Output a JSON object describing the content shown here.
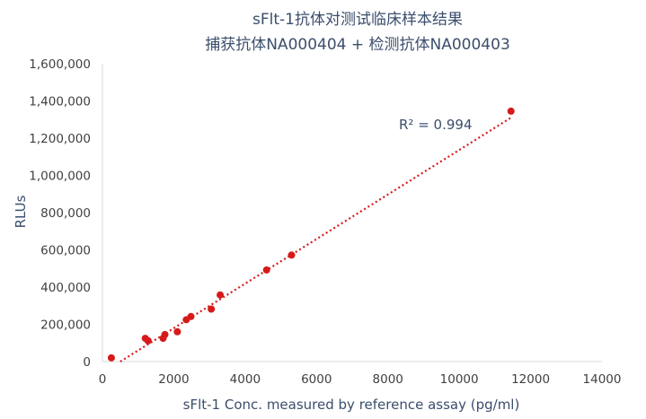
{
  "chart_data": {
    "type": "scatter",
    "title": "sFlt-1抗体对测试临床样本结果",
    "subtitle": "捕获抗体NA000404 + 检测抗体NA000403",
    "xlabel": "sFlt-1 Conc. measured by reference assay (pg/ml)",
    "ylabel": "RLUs",
    "xlim": [
      0,
      14000
    ],
    "ylim": [
      0,
      1600000
    ],
    "x_ticks": [
      0,
      2000,
      4000,
      6000,
      8000,
      10000,
      12000,
      14000
    ],
    "x_tick_labels": [
      "0",
      "2000",
      "4000",
      "6000",
      "8000",
      "10000",
      "12000",
      "14000"
    ],
    "y_ticks": [
      0,
      200000,
      400000,
      600000,
      800000,
      1000000,
      1200000,
      1400000,
      1600000
    ],
    "y_tick_labels": [
      "0",
      "200,000",
      "400,000",
      "600,000",
      "800,000",
      "1,000,000",
      "1,200,000",
      "1,400,000",
      "1,600,000"
    ],
    "grid": false,
    "series": [
      {
        "color": "#d61a1a",
        "points": [
          {
            "x": 250,
            "y": 20000
          },
          {
            "x": 1200,
            "y": 125000
          },
          {
            "x": 1280,
            "y": 112000
          },
          {
            "x": 1700,
            "y": 125000
          },
          {
            "x": 1750,
            "y": 145000
          },
          {
            "x": 2100,
            "y": 160000
          },
          {
            "x": 2350,
            "y": 225000
          },
          {
            "x": 2480,
            "y": 242000
          },
          {
            "x": 3050,
            "y": 282000
          },
          {
            "x": 3300,
            "y": 358000
          },
          {
            "x": 4600,
            "y": 492000
          },
          {
            "x": 5300,
            "y": 572000
          },
          {
            "x": 11450,
            "y": 1345000
          }
        ]
      }
    ],
    "trendline": {
      "type": "linear",
      "style": "dotted",
      "color": "#d61a1a",
      "x_range": [
        500,
        11450
      ],
      "y_range": [
        0,
        1310000
      ]
    },
    "annotations": [
      {
        "text": "R² = 0.994"
      }
    ]
  }
}
